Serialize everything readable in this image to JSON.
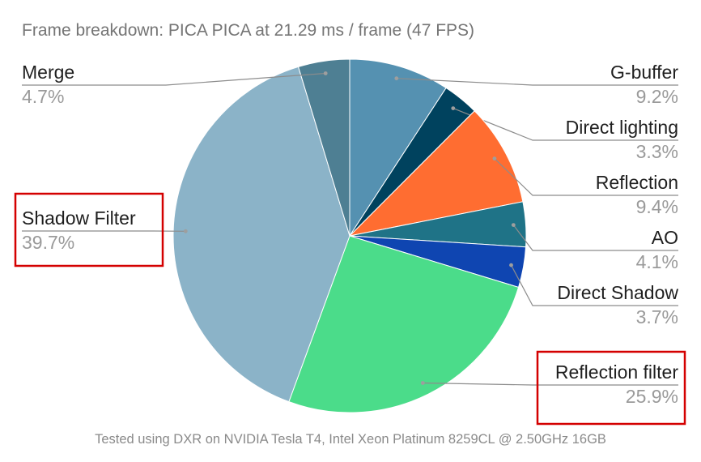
{
  "chart_data": {
    "type": "pie",
    "title": "Frame breakdown: PICA PICA at 21.29 ms / frame (47 FPS)",
    "footer": "Tested using DXR on NVIDIA Tesla T4, Intel Xeon Platinum 8259CL @ 2.50GHz 16GB",
    "slices": [
      {
        "label": "G-buffer",
        "value": 9.2,
        "value_label": "9.2%",
        "color": "#5591b1"
      },
      {
        "label": "Direct lighting",
        "value": 3.3,
        "value_label": "3.3%",
        "color": "#00425e"
      },
      {
        "label": "Reflection",
        "value": 9.4,
        "value_label": "9.4%",
        "color": "#ff6d31"
      },
      {
        "label": "AO",
        "value": 4.1,
        "value_label": "4.1%",
        "color": "#1f7387"
      },
      {
        "label": "Direct Shadow",
        "value": 3.7,
        "value_label": "3.7%",
        "color": "#0f45b1"
      },
      {
        "label": "Reflection filter",
        "value": 25.9,
        "value_label": "25.9%",
        "color": "#4bdc8a"
      },
      {
        "label": "Shadow Filter",
        "value": 39.7,
        "value_label": "39.7%",
        "color": "#8bb3c8"
      },
      {
        "label": "Merge",
        "value": 4.7,
        "value_label": "4.7%",
        "color": "#4e7f93"
      }
    ],
    "highlighted": [
      "Shadow Filter",
      "Reflection filter"
    ],
    "highlight_color": "#d40000"
  }
}
